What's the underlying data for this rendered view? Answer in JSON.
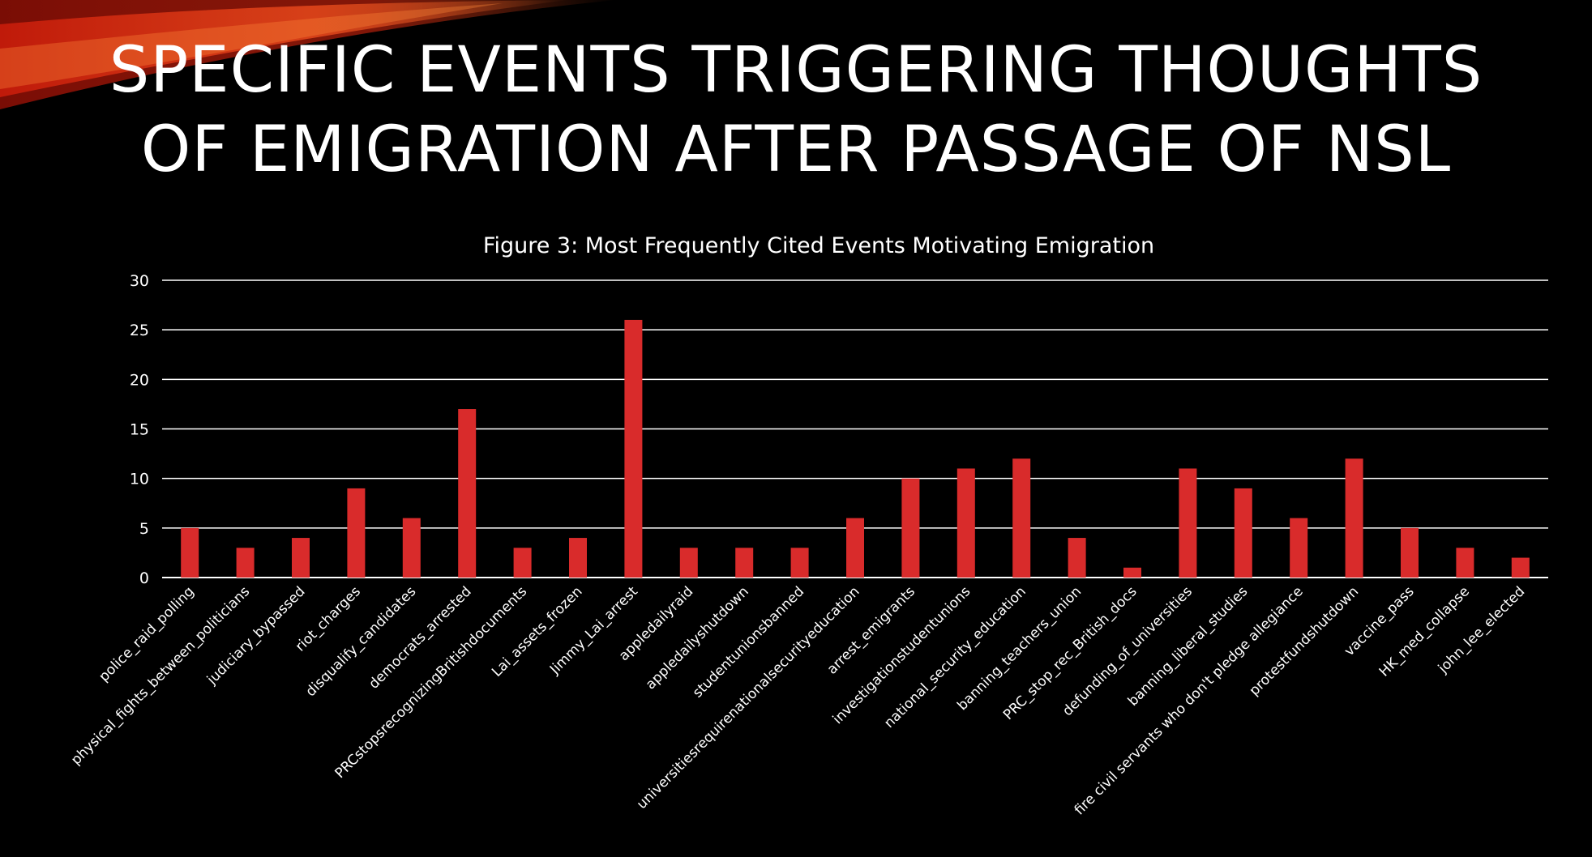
{
  "slide": {
    "title_line1": "SPECIFIC EVENTS TRIGGERING THOUGHTS",
    "title_line2": "OF EMIGRATION AFTER PASSAGE OF NSL"
  },
  "colors": {
    "background": "#000000",
    "bar": "#d92b2b",
    "gridline": "#ffffff",
    "text": "#ffffff"
  },
  "chart_data": {
    "type": "bar",
    "title": "Figure 3: Most Frequently Cited Events Motivating Emigration",
    "xlabel": "",
    "ylabel": "",
    "ylim": [
      0,
      30
    ],
    "yticks": [
      0,
      5,
      10,
      15,
      20,
      25,
      30
    ],
    "grid": true,
    "legend": "none",
    "categories": [
      "police_raid_polling",
      "physical_fights_between_politicians",
      "judiciary_bypassed",
      "riot_charges",
      "disqualify_candidates",
      "democrats_arrested",
      "PRCstopsrecognizingBritishdocuments",
      "Lai_assets_frozen",
      "Jimmy_Lai_arrest",
      "appledailyraid",
      "appledailyshutdown",
      "studentunionsbanned",
      "universitiesrequirenationalsecurityeducation",
      "arrest_emigrants",
      "investigationstudentunions",
      "national_security_education",
      "banning_teachers_union",
      "PRC_stop_rec_British_docs",
      "defunding_of_universities",
      "banning_liberal_studies",
      "fire civil servants who don't pledge allegiance",
      "protestfundshutdown",
      "vaccine_pass",
      "HK_med_collapse",
      "john_lee_elected"
    ],
    "values": [
      5,
      3,
      4,
      9,
      6,
      17,
      3,
      4,
      26,
      3,
      3,
      3,
      6,
      10,
      11,
      12,
      4,
      1,
      11,
      9,
      6,
      12,
      5,
      3,
      2
    ]
  }
}
